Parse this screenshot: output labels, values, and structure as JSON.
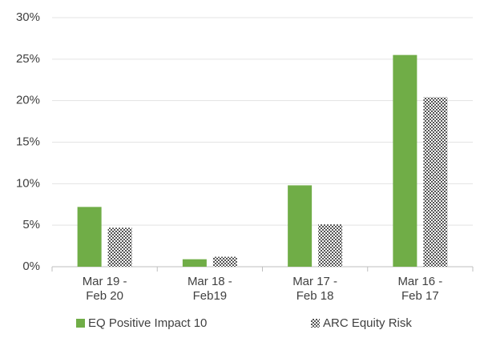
{
  "chart_data": {
    "type": "bar",
    "categories": [
      [
        "Mar 19 -",
        "Feb 20"
      ],
      [
        "Mar 18 -",
        "Feb19"
      ],
      [
        "Mar 17 -",
        "Feb 18"
      ],
      [
        "Mar 16 -",
        "Feb 17"
      ]
    ],
    "series": [
      {
        "name": "EQ Positive Impact 10",
        "color": "#70ad47",
        "values": [
          7.2,
          0.9,
          9.8,
          25.5
        ]
      },
      {
        "name": "ARC Equity Risk",
        "color": "#7f7f7f",
        "pattern": "checker",
        "values": [
          4.7,
          1.2,
          5.1,
          20.4
        ]
      }
    ],
    "ylim": [
      0,
      30
    ],
    "yticks": [
      {
        "value": 0,
        "label": "0%"
      },
      {
        "value": 5,
        "label": "5%"
      },
      {
        "value": 10,
        "label": "10%"
      },
      {
        "value": 15,
        "label": "15%"
      },
      {
        "value": 20,
        "label": "20%"
      },
      {
        "value": 25,
        "label": "25%"
      },
      {
        "value": 30,
        "label": "30%"
      }
    ],
    "grid": true,
    "legend": "bottom"
  }
}
